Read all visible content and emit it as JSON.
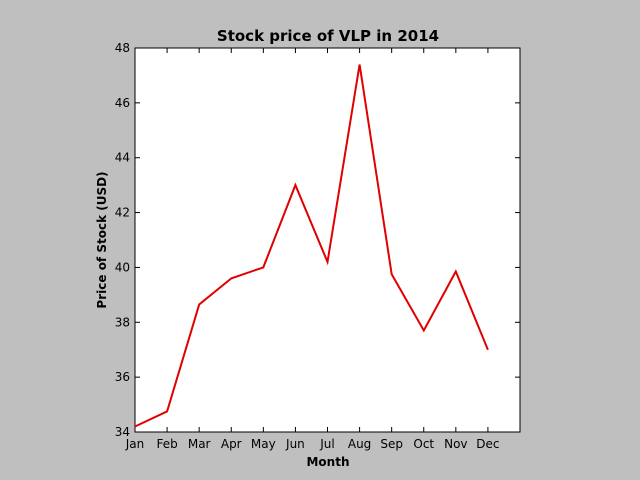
{
  "chart_data": {
    "type": "line",
    "title": "Stock price of VLP in 2014",
    "xlabel": "Month",
    "ylabel": "Price of Stock (USD)",
    "categories": [
      "Jan",
      "Feb",
      "Mar",
      "Apr",
      "May",
      "Jun",
      "Jul",
      "Aug",
      "Sep",
      "Oct",
      "Nov",
      "Dec"
    ],
    "series": [
      {
        "color": "#e00000",
        "values": [
          34.2,
          34.75,
          38.65,
          39.6,
          40.0,
          43.0,
          40.2,
          47.4,
          39.75,
          37.7,
          39.85,
          37.0
        ]
      }
    ],
    "ylim": [
      34,
      48
    ],
    "yticks": [
      34,
      36,
      38,
      40,
      42,
      44,
      46,
      48
    ],
    "xlim": [
      0,
      12
    ],
    "grid": false,
    "legend": "none"
  }
}
